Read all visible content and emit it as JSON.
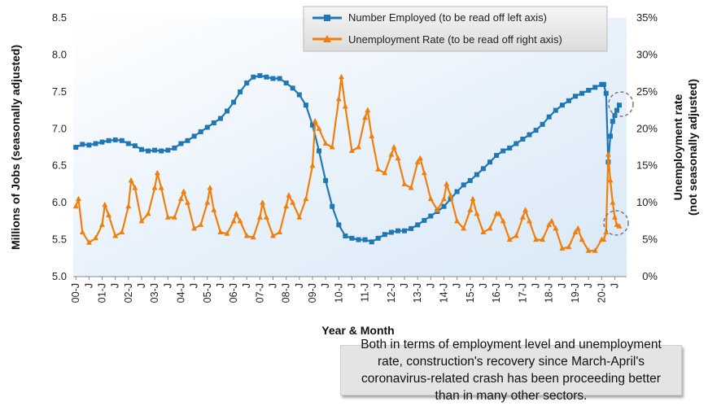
{
  "chart_data": {
    "type": "line",
    "title": "",
    "xlabel": "Year & Month",
    "ylabel_left": "Millions of Jobs (seasonally adjusted)",
    "ylabel_right": "Unemployment rate (not seasonally adjusted)",
    "ylim_left": [
      5.0,
      8.5
    ],
    "ylim_right": [
      0,
      35
    ],
    "yticks_left": [
      "5.0",
      "5.5",
      "6.0",
      "6.5",
      "7.0",
      "7.5",
      "8.0",
      "8.5"
    ],
    "yticks_right": [
      "0%",
      "5%",
      "10%",
      "15%",
      "20%",
      "25%",
      "30%",
      "35%"
    ],
    "xtick_labels": [
      "00-J",
      "J",
      "01-J",
      "J",
      "02-J",
      "J",
      "03-J",
      "J",
      "04-J",
      "J",
      "05-J",
      "J",
      "06-J",
      "J",
      "07-J",
      "J",
      "08-J",
      "J",
      "09-J",
      "J",
      "10-J",
      "J",
      "11-J",
      "J",
      "12-J",
      "J",
      "13-J",
      "J",
      "14-J",
      "J",
      "15-J",
      "J",
      "16-J",
      "J",
      "17-J",
      "J",
      "18-J",
      "J",
      "19-J",
      "J",
      "20-J",
      "J"
    ],
    "x_range_years": [
      2000.0,
      2020.75
    ],
    "grid": false,
    "legend_position": "top-right",
    "series": [
      {
        "name": "Number Employed (to be read off left axis)",
        "axis": "left",
        "color": "#1f77b4",
        "marker": "square",
        "points": [
          [
            2000.0,
            6.75
          ],
          [
            2000.25,
            6.79
          ],
          [
            2000.5,
            6.78
          ],
          [
            2000.75,
            6.8
          ],
          [
            2001.0,
            6.82
          ],
          [
            2001.25,
            6.84
          ],
          [
            2001.5,
            6.85
          ],
          [
            2001.75,
            6.84
          ],
          [
            2002.0,
            6.8
          ],
          [
            2002.25,
            6.77
          ],
          [
            2002.5,
            6.72
          ],
          [
            2002.75,
            6.7
          ],
          [
            2003.0,
            6.71
          ],
          [
            2003.25,
            6.7
          ],
          [
            2003.5,
            6.71
          ],
          [
            2003.75,
            6.74
          ],
          [
            2004.0,
            6.8
          ],
          [
            2004.25,
            6.84
          ],
          [
            2004.5,
            6.9
          ],
          [
            2004.75,
            6.96
          ],
          [
            2005.0,
            7.02
          ],
          [
            2005.25,
            7.08
          ],
          [
            2005.5,
            7.14
          ],
          [
            2005.75,
            7.24
          ],
          [
            2006.0,
            7.36
          ],
          [
            2006.25,
            7.5
          ],
          [
            2006.5,
            7.62
          ],
          [
            2006.75,
            7.7
          ],
          [
            2007.0,
            7.72
          ],
          [
            2007.25,
            7.7
          ],
          [
            2007.5,
            7.68
          ],
          [
            2007.75,
            7.68
          ],
          [
            2008.0,
            7.62
          ],
          [
            2008.25,
            7.55
          ],
          [
            2008.5,
            7.46
          ],
          [
            2008.75,
            7.32
          ],
          [
            2009.0,
            7.05
          ],
          [
            2009.25,
            6.7
          ],
          [
            2009.5,
            6.3
          ],
          [
            2009.75,
            5.95
          ],
          [
            2010.0,
            5.7
          ],
          [
            2010.25,
            5.55
          ],
          [
            2010.5,
            5.52
          ],
          [
            2010.75,
            5.5
          ],
          [
            2011.0,
            5.5
          ],
          [
            2011.25,
            5.47
          ],
          [
            2011.5,
            5.52
          ],
          [
            2011.75,
            5.57
          ],
          [
            2012.0,
            5.6
          ],
          [
            2012.25,
            5.62
          ],
          [
            2012.5,
            5.62
          ],
          [
            2012.75,
            5.65
          ],
          [
            2013.0,
            5.7
          ],
          [
            2013.25,
            5.76
          ],
          [
            2013.5,
            5.82
          ],
          [
            2013.75,
            5.88
          ],
          [
            2014.0,
            5.95
          ],
          [
            2014.25,
            6.05
          ],
          [
            2014.5,
            6.15
          ],
          [
            2014.75,
            6.24
          ],
          [
            2015.0,
            6.3
          ],
          [
            2015.25,
            6.38
          ],
          [
            2015.5,
            6.46
          ],
          [
            2015.75,
            6.55
          ],
          [
            2016.0,
            6.64
          ],
          [
            2016.25,
            6.7
          ],
          [
            2016.5,
            6.74
          ],
          [
            2016.75,
            6.8
          ],
          [
            2017.0,
            6.86
          ],
          [
            2017.25,
            6.92
          ],
          [
            2017.5,
            6.98
          ],
          [
            2017.75,
            7.06
          ],
          [
            2018.0,
            7.16
          ],
          [
            2018.25,
            7.25
          ],
          [
            2018.5,
            7.32
          ],
          [
            2018.75,
            7.38
          ],
          [
            2019.0,
            7.44
          ],
          [
            2019.25,
            7.48
          ],
          [
            2019.5,
            7.52
          ],
          [
            2019.75,
            7.56
          ],
          [
            2020.0,
            7.6
          ],
          [
            2020.08,
            7.6
          ],
          [
            2020.17,
            7.48
          ],
          [
            2020.25,
            6.55
          ],
          [
            2020.33,
            6.9
          ],
          [
            2020.42,
            7.1
          ],
          [
            2020.5,
            7.18
          ],
          [
            2020.58,
            7.25
          ],
          [
            2020.67,
            7.32
          ]
        ]
      },
      {
        "name": "Unemployment Rate (to be read off right axis)",
        "axis": "right",
        "color": "#f07f0e",
        "marker": "triangle",
        "points": [
          [
            2000.0,
            9.5
          ],
          [
            2000.1,
            10.5
          ],
          [
            2000.25,
            6.0
          ],
          [
            2000.5,
            4.6
          ],
          [
            2000.75,
            5.2
          ],
          [
            2001.0,
            7.0
          ],
          [
            2001.1,
            9.7
          ],
          [
            2001.25,
            8.3
          ],
          [
            2001.5,
            5.5
          ],
          [
            2001.75,
            6.0
          ],
          [
            2002.0,
            9.5
          ],
          [
            2002.1,
            13.0
          ],
          [
            2002.25,
            12.0
          ],
          [
            2002.5,
            7.5
          ],
          [
            2002.75,
            8.5
          ],
          [
            2003.0,
            12.0
          ],
          [
            2003.1,
            14.0
          ],
          [
            2003.25,
            12.0
          ],
          [
            2003.5,
            8.0
          ],
          [
            2003.75,
            8.0
          ],
          [
            2004.0,
            10.5
          ],
          [
            2004.1,
            11.5
          ],
          [
            2004.25,
            10.0
          ],
          [
            2004.5,
            6.5
          ],
          [
            2004.75,
            7.0
          ],
          [
            2005.0,
            10.0
          ],
          [
            2005.1,
            12.0
          ],
          [
            2005.25,
            9.0
          ],
          [
            2005.5,
            6.0
          ],
          [
            2005.75,
            5.8
          ],
          [
            2006.0,
            7.5
          ],
          [
            2006.1,
            8.5
          ],
          [
            2006.25,
            7.5
          ],
          [
            2006.5,
            5.5
          ],
          [
            2006.75,
            5.3
          ],
          [
            2007.0,
            8.0
          ],
          [
            2007.1,
            10.0
          ],
          [
            2007.25,
            8.0
          ],
          [
            2007.5,
            5.5
          ],
          [
            2007.75,
            6.0
          ],
          [
            2008.0,
            9.5
          ],
          [
            2008.1,
            11.0
          ],
          [
            2008.25,
            10.0
          ],
          [
            2008.5,
            8.0
          ],
          [
            2008.75,
            10.5
          ],
          [
            2009.0,
            15.0
          ],
          [
            2009.1,
            21.0
          ],
          [
            2009.25,
            20.0
          ],
          [
            2009.5,
            18.0
          ],
          [
            2009.75,
            17.5
          ],
          [
            2010.0,
            24.0
          ],
          [
            2010.1,
            27.0
          ],
          [
            2010.25,
            23.0
          ],
          [
            2010.5,
            17.0
          ],
          [
            2010.75,
            17.5
          ],
          [
            2011.0,
            21.5
          ],
          [
            2011.1,
            22.5
          ],
          [
            2011.25,
            19.0
          ],
          [
            2011.5,
            14.5
          ],
          [
            2011.75,
            14.0
          ],
          [
            2012.0,
            16.5
          ],
          [
            2012.1,
            17.5
          ],
          [
            2012.25,
            16.0
          ],
          [
            2012.5,
            12.5
          ],
          [
            2012.75,
            12.0
          ],
          [
            2013.0,
            15.5
          ],
          [
            2013.1,
            16.0
          ],
          [
            2013.25,
            14.0
          ],
          [
            2013.5,
            10.5
          ],
          [
            2013.75,
            9.0
          ],
          [
            2014.0,
            10.5
          ],
          [
            2014.1,
            12.5
          ],
          [
            2014.25,
            11.0
          ],
          [
            2014.5,
            7.5
          ],
          [
            2014.75,
            6.5
          ],
          [
            2015.0,
            9.0
          ],
          [
            2015.1,
            10.5
          ],
          [
            2015.25,
            8.5
          ],
          [
            2015.5,
            6.0
          ],
          [
            2015.75,
            6.5
          ],
          [
            2016.0,
            8.5
          ],
          [
            2016.1,
            8.5
          ],
          [
            2016.25,
            7.5
          ],
          [
            2016.5,
            5.0
          ],
          [
            2016.75,
            5.5
          ],
          [
            2017.0,
            8.0
          ],
          [
            2017.1,
            9.0
          ],
          [
            2017.25,
            7.5
          ],
          [
            2017.5,
            5.0
          ],
          [
            2017.75,
            5.0
          ],
          [
            2018.0,
            7.0
          ],
          [
            2018.1,
            7.5
          ],
          [
            2018.25,
            6.5
          ],
          [
            2018.5,
            3.8
          ],
          [
            2018.75,
            4.0
          ],
          [
            2019.0,
            6.0
          ],
          [
            2019.1,
            6.5
          ],
          [
            2019.25,
            5.0
          ],
          [
            2019.5,
            3.5
          ],
          [
            2019.75,
            3.5
          ],
          [
            2020.0,
            5.0
          ],
          [
            2020.08,
            5.0
          ],
          [
            2020.17,
            6.0
          ],
          [
            2020.25,
            16.5
          ],
          [
            2020.33,
            13.0
          ],
          [
            2020.42,
            10.0
          ],
          [
            2020.5,
            8.0
          ],
          [
            2020.58,
            7.0
          ],
          [
            2020.67,
            6.8
          ]
        ]
      }
    ]
  },
  "note_text": "Both in terms of employment level and unemployment rate, construction's recovery since March-April's coronavirus-related crash has been proceeding better than in many other sectors."
}
